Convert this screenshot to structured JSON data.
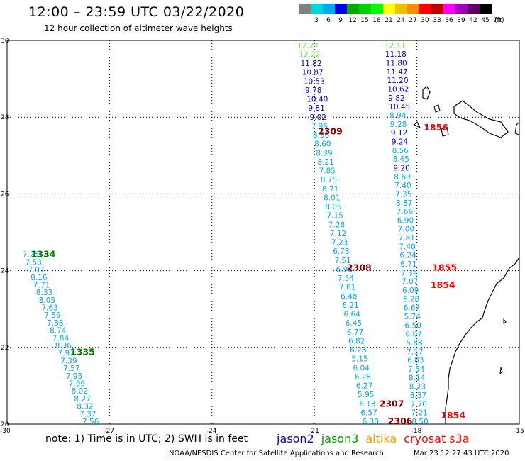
{
  "title": "12:00 – 23:59 UTC 03/22/2020",
  "subtitle": "12 hour collection of altimeter wave heights",
  "colorbar": {
    "colors": [
      "#808080",
      "#00d8d8",
      "#00a8f0",
      "#0000f0",
      "#00a800",
      "#00d000",
      "#00ff00",
      "#ffff00",
      "#f0c000",
      "#ff8c00",
      "#ff0000",
      "#c00000",
      "#ff00ff",
      "#a000c0",
      "#600060",
      "#000000"
    ],
    "labels": [
      "3",
      "6",
      "9",
      "12",
      "15",
      "18",
      "21",
      "24",
      "27",
      "30",
      "33",
      "36",
      "39",
      "42",
      "45",
      "70"
    ],
    "unit": "(ft)"
  },
  "map": {
    "lon_range": [
      -30,
      -15
    ],
    "lat_range": [
      20,
      30
    ],
    "lon_ticks": [
      "-30",
      "-27",
      "-24",
      "-21",
      "-18",
      "-15"
    ],
    "lon_tick_values": [
      -30,
      -27,
      -24,
      -21,
      -18,
      -15
    ],
    "lat_ticks": [
      "30",
      "28",
      "26",
      "24",
      "22",
      "20"
    ],
    "lat_tick_values": [
      30,
      28,
      26,
      24,
      22,
      20
    ],
    "grid": true,
    "track_color_light": "#00a8f0",
    "track_color_dark": "#0000c0",
    "track_color_green": "#66dd44",
    "time_labels": [
      {
        "text": "1334",
        "lon": -29.3,
        "lat": 24.35,
        "color": "#008000"
      },
      {
        "text": "1335",
        "lon": -28.15,
        "lat": 21.8,
        "color": "#008000"
      },
      {
        "text": "2309",
        "lon": -20.9,
        "lat": 27.55,
        "color": "#800000"
      },
      {
        "text": "2308",
        "lon": -20.05,
        "lat": 24.0,
        "color": "#800000"
      },
      {
        "text": "2307",
        "lon": -19.1,
        "lat": 20.45,
        "color": "#800000"
      },
      {
        "text": "2306",
        "lon": -18.85,
        "lat": 20.0,
        "color": "#800000"
      },
      {
        "text": "1856",
        "lon": -17.8,
        "lat": 27.65,
        "color": "#ff0000"
      },
      {
        "text": "1855",
        "lon": -17.55,
        "lat": 24.0,
        "color": "#ff0000"
      },
      {
        "text": "1854",
        "lon": -17.6,
        "lat": 23.55,
        "color": "#ff0000"
      },
      {
        "text": "1854",
        "lon": -17.3,
        "lat": 20.15,
        "color": "#ff0000"
      }
    ],
    "tracks": [
      {
        "name": "track-west",
        "lat_start": 24.35,
        "lat_end": 20.0,
        "lon_start": -29.55,
        "lon_end": -27.8,
        "values": [
          "7.25",
          "7.53",
          "7.97",
          "8.16",
          "7.71",
          "8.33",
          "8.05",
          "7.63",
          "7.59",
          "7.88",
          "8.74",
          "7.84",
          "8.36",
          "7.97",
          "7.39",
          "7.57",
          "7.95",
          "7.99",
          "8.02",
          "8.27",
          "8.32",
          "7.37",
          "7.56"
        ],
        "dark": []
      },
      {
        "name": "track-middle",
        "lat_start": 29.8,
        "lat_end": 20.0,
        "lon_start": -21.5,
        "lon_end": -19.6,
        "values": [
          "12.27",
          "12.22",
          "11.82",
          "10.87",
          "10.53",
          "9.78",
          "10.40",
          "9.81",
          "9.02",
          "7.96",
          "8.36",
          "8.60",
          "8.39",
          "8.21",
          "7.85",
          "8.75",
          "8.71",
          "8.01",
          "8.05",
          "7.15",
          "7.28",
          "7.12",
          "7.23",
          "6.78",
          "7.51",
          "6.98",
          "7.54",
          "7.81",
          "6.48",
          "6.21",
          "6.64",
          "6.45",
          "6.77",
          "6.82",
          "6.28",
          "5.15",
          "6.04",
          "6.28",
          "6.27",
          "5.95",
          "6.13",
          "6.57",
          "6.30"
        ],
        "dark": [
          2,
          3,
          4,
          5,
          6,
          7,
          8
        ],
        "green": [
          0,
          1
        ]
      },
      {
        "name": "track-east",
        "lat_start": 29.8,
        "lat_end": 20.0,
        "lon_start": -18.95,
        "lon_end": -18.15,
        "values": [
          "12.11",
          "11.18",
          "11.80",
          "11.47",
          "11.20",
          "10.62",
          "9.82",
          "10.45",
          "8.94",
          "9.28",
          "9.12",
          "9.24",
          "8.56",
          "8.45",
          "9.20",
          "8.69",
          "7.40",
          "7.35",
          "8.87",
          "7.66",
          "6.90",
          "7.00",
          "7.81",
          "7.40",
          "6.24",
          "6.71",
          "7.34",
          "7.07",
          "6.09",
          "6.28",
          "6.67",
          "5.74",
          "6.50",
          "6.07",
          "5.88",
          "7.17",
          "6.83",
          "7.54",
          "8.14",
          "8.23",
          "8.37",
          "7.70",
          "7.21",
          "8.50"
        ],
        "dark": [
          1,
          2,
          3,
          4,
          5,
          6,
          7,
          10,
          11,
          14
        ],
        "green": [
          0
        ]
      }
    ]
  },
  "note": "note:  1) Time is in UTC;  2) SWH is in feet",
  "legend": [
    {
      "label": "jason2",
      "color": "#0000d0"
    },
    {
      "label": "jason3",
      "color": "#00a000"
    },
    {
      "label": "altika",
      "color": "#ff9900"
    },
    {
      "label": "cryosat s3a",
      "color": "#ff0000"
    }
  ],
  "credit": "NOAA/NESDIS Center for Satellite Applications and Research",
  "timestamp": "Mar 23 12:27:43 UTC 2020"
}
